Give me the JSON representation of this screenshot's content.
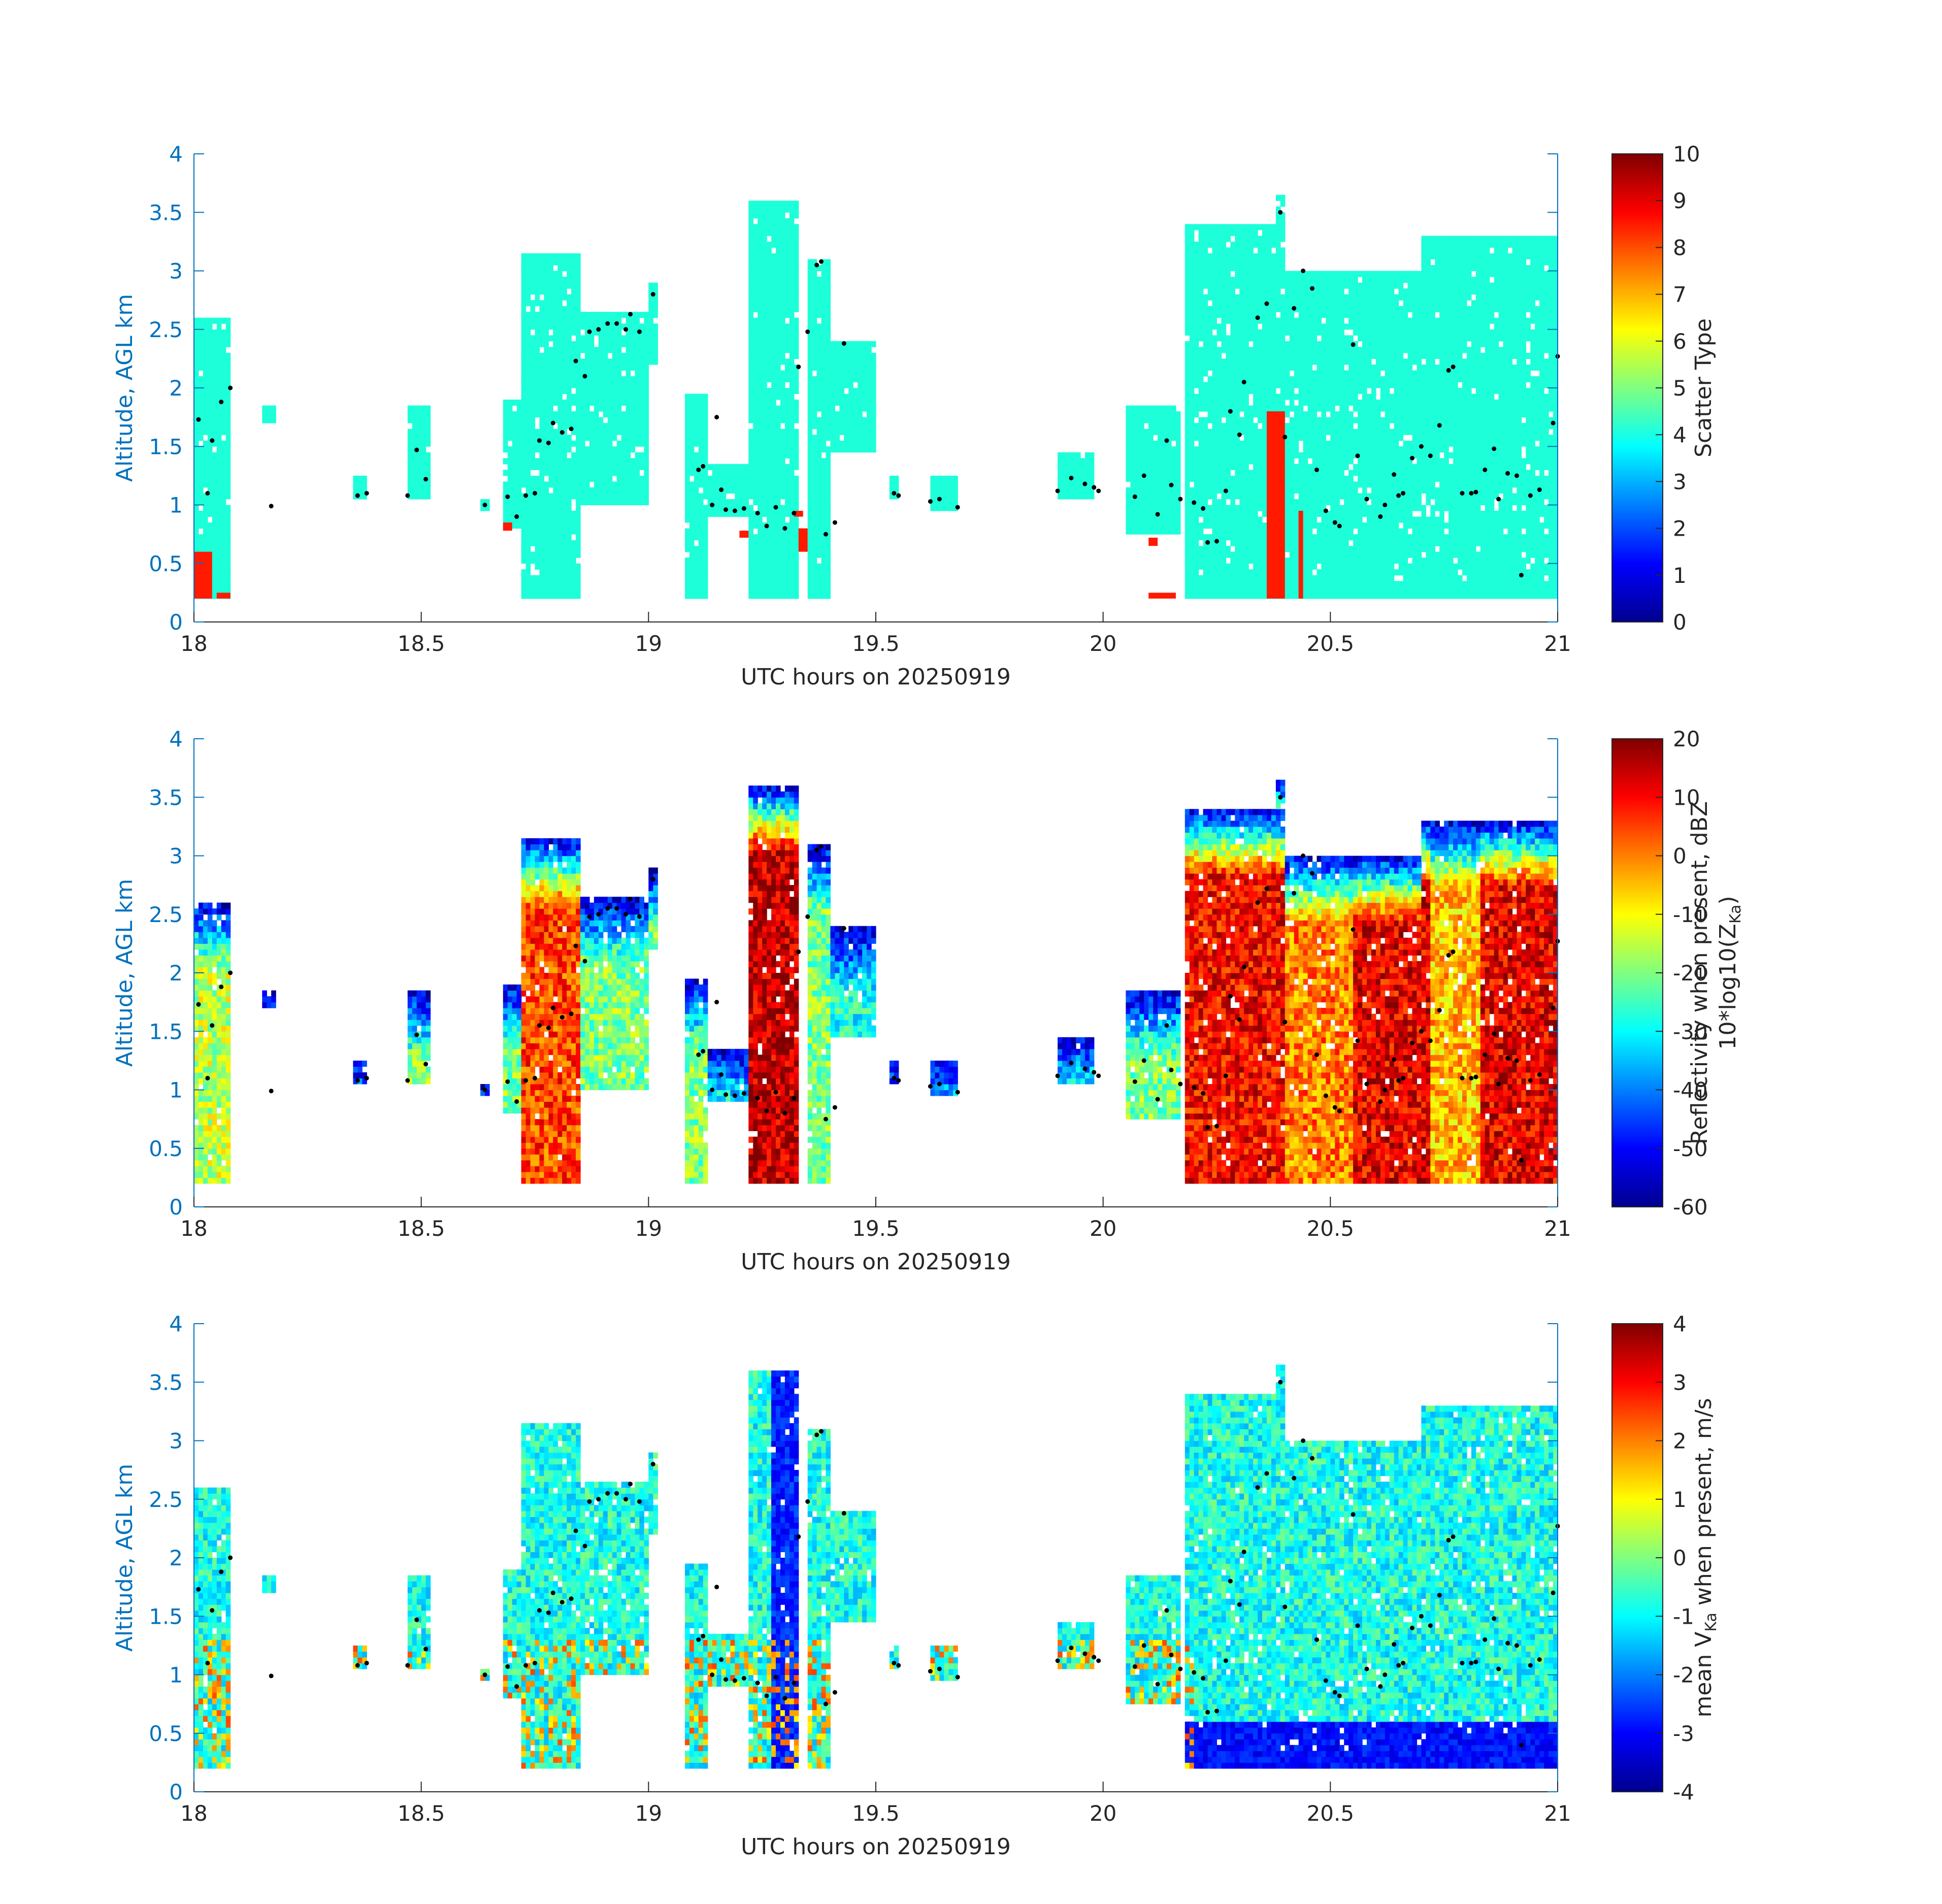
{
  "chart_data": [
    {
      "type": "heatmap",
      "xlabel": "UTC hours on 20250919",
      "ylabel": "Altitude, AGL km",
      "xlim": [
        18,
        21
      ],
      "ylim": [
        0,
        4
      ],
      "xticks": [
        "18",
        "18.5",
        "19",
        "19.5",
        "20",
        "20.5",
        "21"
      ],
      "yticks": [
        "0",
        "0.5",
        "1",
        "1.5",
        "2",
        "2.5",
        "3",
        "3.5",
        "4"
      ],
      "colorbar_label": "Scatter Type",
      "colorbar_ticks": [
        "0",
        "1",
        "2",
        "3",
        "4",
        "5",
        "6",
        "7",
        "8",
        "9",
        "10"
      ],
      "clim": [
        0,
        10
      ],
      "colormap": "jet",
      "cloud_columns": [
        {
          "x0": 18.0,
          "x1": 18.08,
          "top": 2.6,
          "bottom": 0.2
        },
        {
          "x0": 18.15,
          "x1": 18.18,
          "top": 1.85,
          "bottom": 1.7
        },
        {
          "x0": 18.35,
          "x1": 18.38,
          "top": 1.25,
          "bottom": 1.05
        },
        {
          "x0": 18.47,
          "x1": 18.52,
          "top": 1.85,
          "bottom": 1.05
        },
        {
          "x0": 18.63,
          "x1": 18.65,
          "top": 1.05,
          "bottom": 0.97
        },
        {
          "x0": 18.68,
          "x1": 18.72,
          "top": 1.9,
          "bottom": 0.8
        },
        {
          "x0": 18.72,
          "x1": 18.85,
          "top": 3.15,
          "bottom": 0.2
        },
        {
          "x0": 18.85,
          "x1": 19.0,
          "top": 2.65,
          "bottom": 1.0
        },
        {
          "x0": 19.0,
          "x1": 19.02,
          "top": 2.9,
          "bottom": 2.2
        },
        {
          "x0": 19.08,
          "x1": 19.13,
          "top": 1.95,
          "bottom": 0.2
        },
        {
          "x0": 19.13,
          "x1": 19.22,
          "top": 1.35,
          "bottom": 0.9
        },
        {
          "x0": 19.22,
          "x1": 19.33,
          "top": 3.6,
          "bottom": 0.2
        },
        {
          "x0": 19.35,
          "x1": 19.4,
          "top": 3.1,
          "bottom": 0.2
        },
        {
          "x0": 19.4,
          "x1": 19.5,
          "top": 2.4,
          "bottom": 1.45
        },
        {
          "x0": 19.53,
          "x1": 19.55,
          "top": 1.25,
          "bottom": 1.05
        },
        {
          "x0": 19.62,
          "x1": 19.68,
          "top": 1.25,
          "bottom": 0.95
        },
        {
          "x0": 19.9,
          "x1": 19.98,
          "top": 1.45,
          "bottom": 1.05
        },
        {
          "x0": 20.05,
          "x1": 20.17,
          "top": 1.85,
          "bottom": 0.75
        },
        {
          "x0": 20.18,
          "x1": 20.4,
          "top": 3.4,
          "bottom": 0.2
        },
        {
          "x0": 20.38,
          "x1": 20.4,
          "top": 3.65,
          "bottom": 0.2
        },
        {
          "x0": 20.4,
          "x1": 20.7,
          "top": 3.0,
          "bottom": 0.2
        },
        {
          "x0": 20.7,
          "x1": 21.0,
          "top": 3.3,
          "bottom": 0.2
        }
      ],
      "highlight_cells": [
        {
          "x0": 18.0,
          "x1": 18.04,
          "y0": 0.2,
          "y1": 0.6,
          "value": 8.5
        },
        {
          "x0": 18.05,
          "x1": 18.08,
          "y0": 0.2,
          "y1": 0.25,
          "value": 8.5
        },
        {
          "x0": 18.68,
          "x1": 18.7,
          "y0": 0.78,
          "y1": 0.85,
          "value": 8.5
        },
        {
          "x0": 19.2,
          "x1": 19.22,
          "y0": 0.72,
          "y1": 0.78,
          "value": 8.5
        },
        {
          "x0": 19.33,
          "x1": 19.35,
          "y0": 0.6,
          "y1": 0.8,
          "value": 8.5
        },
        {
          "x0": 19.32,
          "x1": 19.34,
          "y0": 0.9,
          "y1": 0.95,
          "value": 8.5
        },
        {
          "x0": 20.1,
          "x1": 20.12,
          "y0": 0.65,
          "y1": 0.72,
          "value": 8.5
        },
        {
          "x0": 20.1,
          "x1": 20.16,
          "y0": 0.2,
          "y1": 0.25,
          "value": 8.5
        },
        {
          "x0": 20.36,
          "x1": 20.4,
          "y0": 0.2,
          "y1": 1.8,
          "value": 8.5
        },
        {
          "x0": 20.43,
          "x1": 20.44,
          "y0": 0.2,
          "y1": 0.95,
          "value": 8.5
        }
      ],
      "base_value": 3.8
    },
    {
      "type": "heatmap",
      "xlabel": "UTC hours on 20250919",
      "ylabel": "Altitude, AGL km",
      "xlim": [
        18,
        21
      ],
      "ylim": [
        0,
        4
      ],
      "xticks": [
        "18",
        "18.5",
        "19",
        "19.5",
        "20",
        "20.5",
        "21"
      ],
      "yticks": [
        "0",
        "0.5",
        "1",
        "1.5",
        "2",
        "2.5",
        "3",
        "3.5",
        "4"
      ],
      "colorbar_label_line1": "Reflectivity when present, dBZ",
      "colorbar_label_line2": "10*log10(Z",
      "colorbar_label_sub": "Ka",
      "colorbar_label_end": ")",
      "colorbar_ticks": [
        "-60",
        "-50",
        "-40",
        "-30",
        "-20",
        "-10",
        "0",
        "10",
        "20"
      ],
      "clim": [
        -60,
        20
      ],
      "colormap": "jet",
      "cores": [
        {
          "x0": 18.0,
          "x1": 18.08,
          "top": 2.7,
          "bottom": 0.2,
          "peak": -15
        },
        {
          "x0": 18.72,
          "x1": 18.85,
          "top": 3.15,
          "bottom": 0.2,
          "peak": 5
        },
        {
          "x0": 18.85,
          "x1": 19.0,
          "top": 2.6,
          "bottom": 1.0,
          "peak": -20
        },
        {
          "x0": 19.22,
          "x1": 19.33,
          "top": 3.6,
          "bottom": 0.2,
          "peak": 15
        },
        {
          "x0": 19.4,
          "x1": 19.5,
          "top": 2.35,
          "bottom": 1.45,
          "peak": -28
        },
        {
          "x0": 20.18,
          "x1": 20.4,
          "top": 3.4,
          "bottom": 0.2,
          "peak": 10
        },
        {
          "x0": 20.4,
          "x1": 20.55,
          "top": 3.0,
          "bottom": 0.2,
          "peak": 0
        },
        {
          "x0": 20.55,
          "x1": 20.72,
          "top": 3.0,
          "bottom": 0.2,
          "peak": 12
        },
        {
          "x0": 20.72,
          "x1": 20.83,
          "top": 2.2,
          "bottom": 0.2,
          "peak": -5
        },
        {
          "x0": 20.83,
          "x1": 21.0,
          "top": 3.25,
          "bottom": 0.2,
          "peak": 12
        }
      ]
    },
    {
      "type": "heatmap",
      "xlabel": "UTC hours on 20250919",
      "ylabel": "Altitude, AGL km",
      "xlim": [
        18,
        21
      ],
      "ylim": [
        0,
        4
      ],
      "xticks": [
        "18",
        "18.5",
        "19",
        "19.5",
        "20",
        "20.5",
        "21"
      ],
      "yticks": [
        "0",
        "0.5",
        "1",
        "1.5",
        "2",
        "2.5",
        "3",
        "3.5",
        "4"
      ],
      "colorbar_label_pre": "mean V",
      "colorbar_label_sub": "Ka",
      "colorbar_label_post": " when present, m/s",
      "colorbar_ticks": [
        "-4",
        "-3",
        "-2",
        "-1",
        "0",
        "1",
        "2",
        "3",
        "4"
      ],
      "clim": [
        -4,
        4
      ],
      "colormap": "jet"
    }
  ],
  "overlay_points": [
    [
      18.01,
      1.73
    ],
    [
      18.03,
      1.1
    ],
    [
      18.04,
      1.55
    ],
    [
      18.06,
      1.88
    ],
    [
      18.08,
      2.0
    ],
    [
      18.17,
      0.99
    ],
    [
      18.36,
      1.08
    ],
    [
      18.38,
      1.1
    ],
    [
      18.49,
      1.47
    ],
    [
      18.51,
      1.22
    ],
    [
      18.47,
      1.08
    ],
    [
      18.64,
      1.0
    ],
    [
      18.69,
      1.07
    ],
    [
      18.71,
      0.9
    ],
    [
      18.73,
      1.08
    ],
    [
      18.75,
      1.1
    ],
    [
      18.76,
      1.55
    ],
    [
      18.78,
      1.53
    ],
    [
      18.79,
      1.7
    ],
    [
      18.81,
      1.62
    ],
    [
      18.83,
      1.65
    ],
    [
      18.84,
      2.23
    ],
    [
      18.86,
      2.1
    ],
    [
      18.87,
      2.48
    ],
    [
      18.89,
      2.5
    ],
    [
      18.91,
      2.55
    ],
    [
      18.93,
      2.55
    ],
    [
      18.95,
      2.5
    ],
    [
      18.96,
      2.63
    ],
    [
      18.98,
      2.48
    ],
    [
      19.01,
      2.8
    ],
    [
      19.11,
      1.3
    ],
    [
      19.12,
      1.33
    ],
    [
      19.14,
      1.0
    ],
    [
      19.15,
      1.75
    ],
    [
      19.16,
      1.13
    ],
    [
      19.17,
      0.96
    ],
    [
      19.19,
      0.95
    ],
    [
      19.21,
      0.97
    ],
    [
      19.24,
      0.93
    ],
    [
      19.26,
      0.82
    ],
    [
      19.28,
      0.98
    ],
    [
      19.3,
      0.8
    ],
    [
      19.32,
      0.93
    ],
    [
      19.33,
      2.18
    ],
    [
      19.35,
      2.48
    ],
    [
      19.37,
      3.05
    ],
    [
      19.38,
      3.08
    ],
    [
      19.39,
      0.75
    ],
    [
      19.41,
      0.85
    ],
    [
      19.43,
      2.38
    ],
    [
      19.54,
      1.1
    ],
    [
      19.55,
      1.08
    ],
    [
      19.62,
      1.03
    ],
    [
      19.64,
      1.05
    ],
    [
      19.68,
      0.98
    ],
    [
      19.9,
      1.12
    ],
    [
      19.93,
      1.23
    ],
    [
      19.96,
      1.18
    ],
    [
      19.98,
      1.15
    ],
    [
      19.99,
      1.12
    ],
    [
      20.07,
      1.07
    ],
    [
      20.09,
      1.25
    ],
    [
      20.12,
      0.92
    ],
    [
      20.14,
      1.55
    ],
    [
      20.15,
      1.17
    ],
    [
      20.17,
      1.05
    ],
    [
      20.2,
      1.02
    ],
    [
      20.22,
      0.97
    ],
    [
      20.23,
      0.68
    ],
    [
      20.25,
      0.69
    ],
    [
      20.27,
      1.12
    ],
    [
      20.28,
      1.8
    ],
    [
      20.3,
      1.6
    ],
    [
      20.31,
      2.05
    ],
    [
      20.34,
      2.6
    ],
    [
      20.36,
      2.72
    ],
    [
      20.39,
      3.5
    ],
    [
      20.4,
      1.58
    ],
    [
      20.42,
      2.68
    ],
    [
      20.44,
      3.0
    ],
    [
      20.46,
      2.85
    ],
    [
      20.47,
      1.3
    ],
    [
      20.49,
      0.95
    ],
    [
      20.51,
      0.85
    ],
    [
      20.52,
      0.82
    ],
    [
      20.55,
      2.37
    ],
    [
      20.56,
      1.42
    ],
    [
      20.58,
      1.05
    ],
    [
      20.61,
      0.9
    ],
    [
      20.62,
      1.0
    ],
    [
      20.64,
      1.26
    ],
    [
      20.65,
      1.08
    ],
    [
      20.66,
      1.1
    ],
    [
      20.68,
      1.4
    ],
    [
      20.7,
      1.5
    ],
    [
      20.72,
      1.42
    ],
    [
      20.74,
      1.68
    ],
    [
      20.76,
      2.15
    ],
    [
      20.77,
      2.18
    ],
    [
      20.79,
      1.1
    ],
    [
      20.81,
      1.1
    ],
    [
      20.82,
      1.11
    ],
    [
      20.84,
      1.3
    ],
    [
      20.86,
      1.48
    ],
    [
      20.87,
      1.05
    ],
    [
      20.89,
      1.27
    ],
    [
      20.91,
      1.25
    ],
    [
      20.92,
      0.4
    ],
    [
      20.94,
      1.08
    ],
    [
      20.96,
      1.13
    ],
    [
      20.99,
      1.7
    ],
    [
      21.0,
      2.27
    ]
  ]
}
